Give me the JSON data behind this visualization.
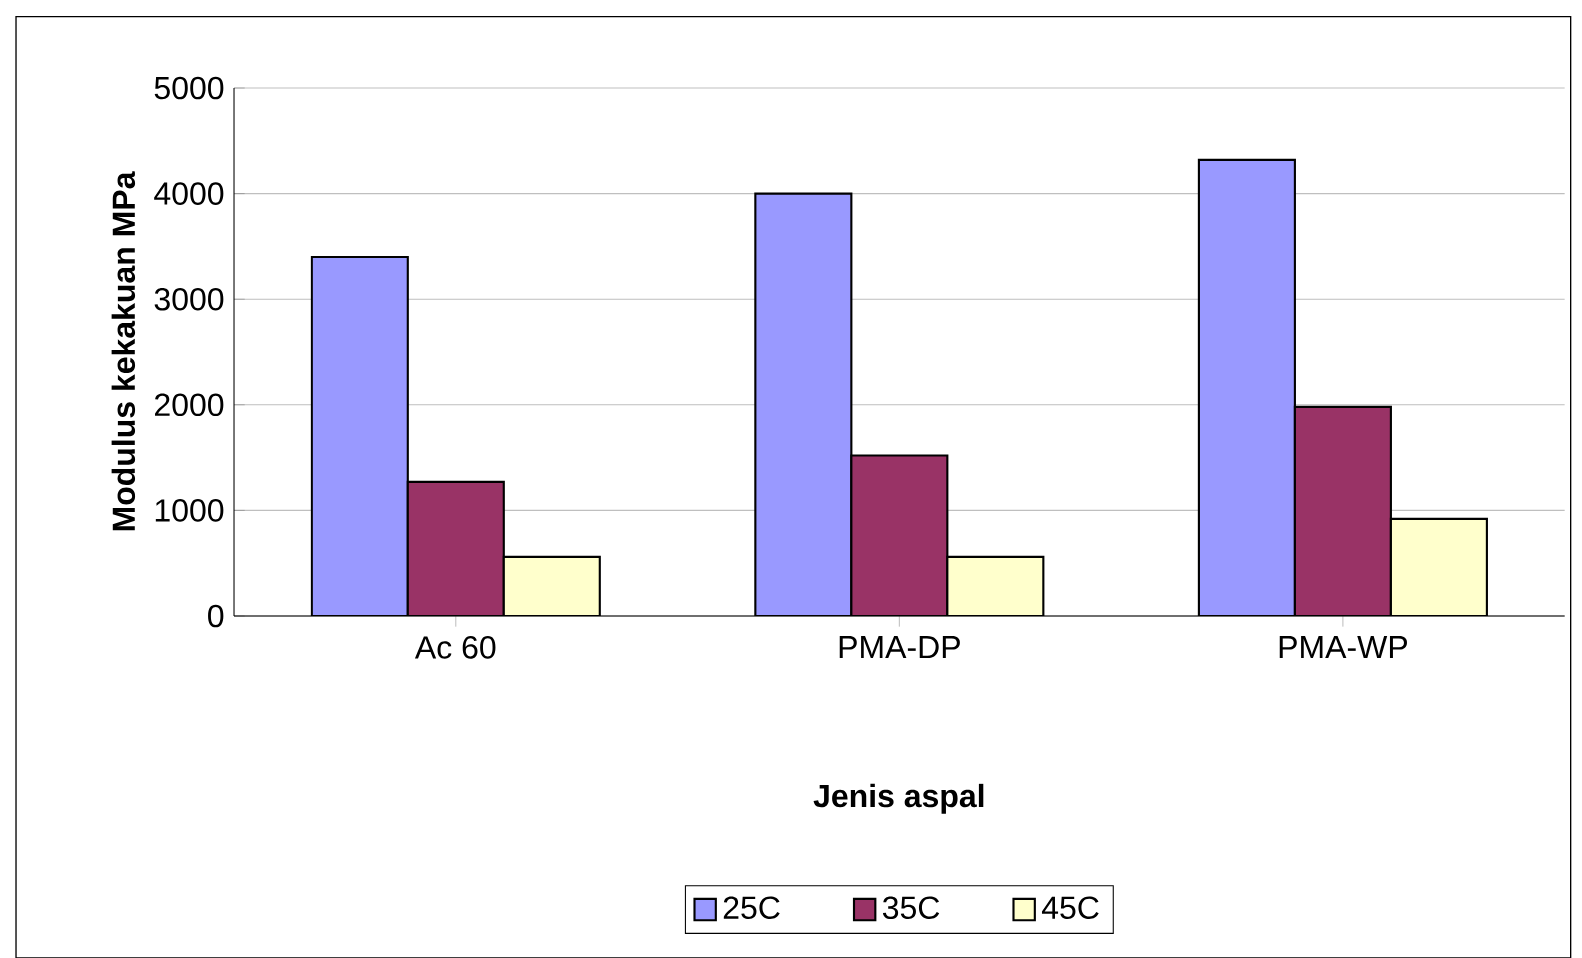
{
  "chart_data": {
    "type": "bar",
    "xlabel": "Jenis aspal",
    "ylabel": "Modulus kekakuan MPa",
    "categories": [
      "Ac 60",
      "PMA-DP",
      "PMA-WP"
    ],
    "series": [
      {
        "name": "25C",
        "color": "#9999ff",
        "values": [
          3400,
          4000,
          4320
        ]
      },
      {
        "name": "35C",
        "color": "#993366",
        "values": [
          1270,
          1520,
          1980
        ]
      },
      {
        "name": "45C",
        "color": "#ffffcc",
        "values": [
          560,
          560,
          920
        ]
      }
    ],
    "ylim": [
      0,
      5000
    ],
    "yticks": [
      0,
      1000,
      2000,
      3000,
      4000,
      5000
    ],
    "grid": "y",
    "legend": "bottom"
  }
}
